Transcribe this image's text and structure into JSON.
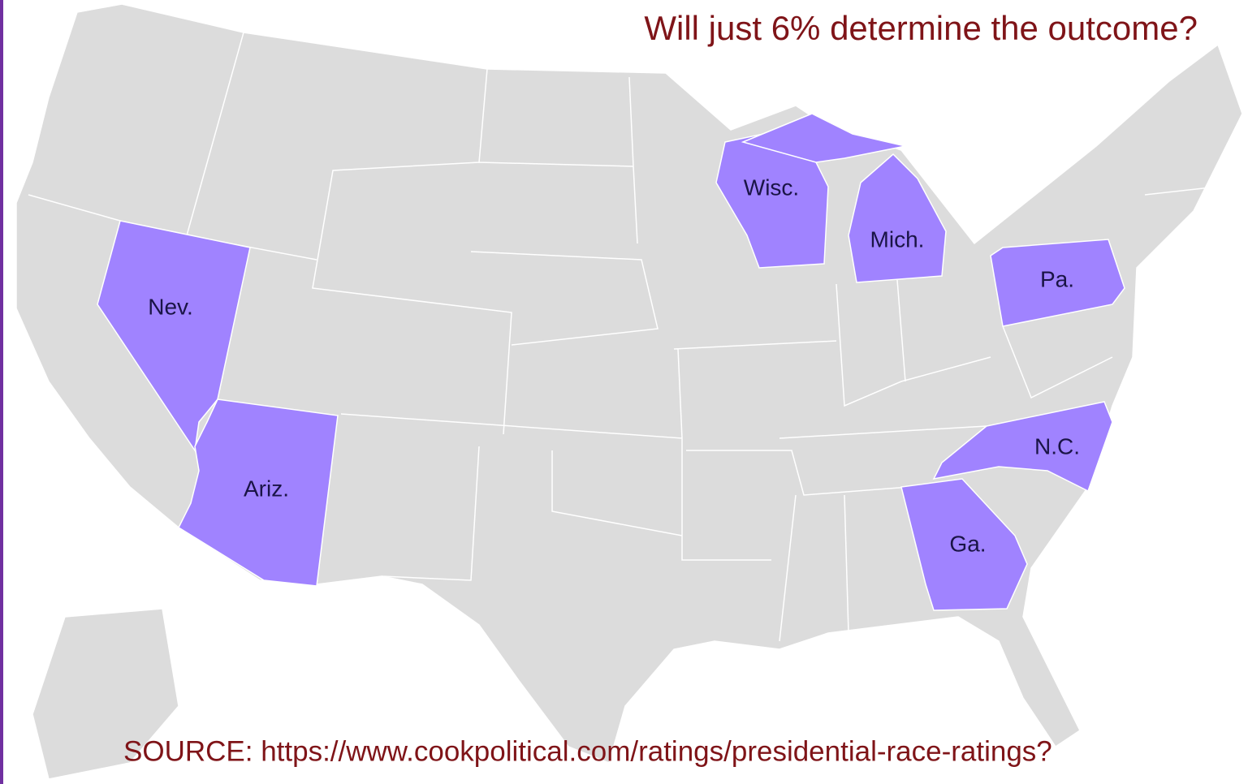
{
  "title": "Will just 6% determine the outcome?",
  "source": "SOURCE: https://www.cookpolitical.com/ratings/presidential-race-ratings?",
  "states": [
    {
      "label": "Nev."
    },
    {
      "label": "Ariz."
    },
    {
      "label": "Wisc."
    },
    {
      "label": "Mich."
    },
    {
      "label": "Pa."
    },
    {
      "label": "N.C."
    },
    {
      "label": "Ga."
    }
  ]
}
